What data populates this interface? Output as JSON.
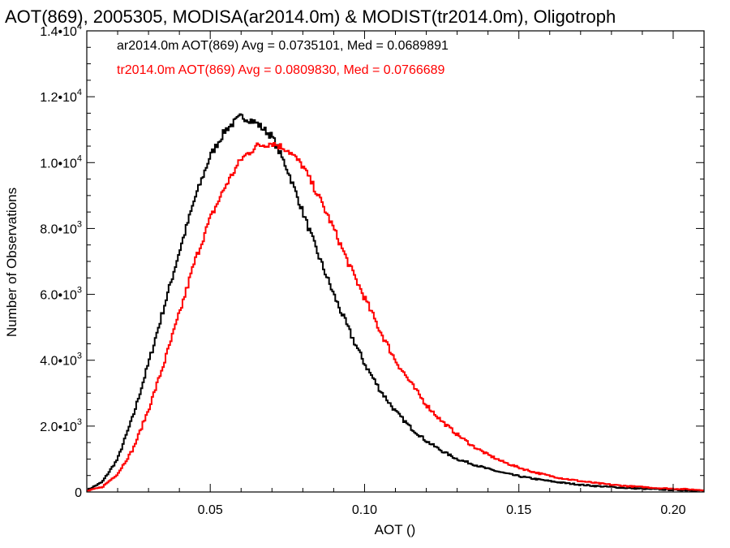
{
  "chart_data": {
    "type": "line",
    "title": "AOT(869), 2005305, MODISA(ar2014.0m) & MODIST(tr2014.0m), Oligotroph",
    "xlabel": "AOT ()",
    "ylabel": "Number of Observations",
    "xlim": [
      0.01,
      0.21
    ],
    "ylim": [
      0,
      14000
    ],
    "x_ticks": [
      {
        "value": 0.05,
        "label": "0.05"
      },
      {
        "value": 0.1,
        "label": "0.10"
      },
      {
        "value": 0.15,
        "label": "0.15"
      },
      {
        "value": 0.2,
        "label": "0.20"
      }
    ],
    "y_ticks": [
      {
        "value": 0,
        "label": "0"
      },
      {
        "value": 2000,
        "mantissa": "2.0•10",
        "exp": "3"
      },
      {
        "value": 4000,
        "mantissa": "4.0•10",
        "exp": "3"
      },
      {
        "value": 6000,
        "mantissa": "6.0•10",
        "exp": "3"
      },
      {
        "value": 8000,
        "mantissa": "8.0•10",
        "exp": "3"
      },
      {
        "value": 10000,
        "mantissa": "1.0•10",
        "exp": "4"
      },
      {
        "value": 12000,
        "mantissa": "1.2•10",
        "exp": "4"
      },
      {
        "value": 14000,
        "mantissa": "1.4•10",
        "exp": "4"
      }
    ],
    "grid": false,
    "legend_position": "top-left",
    "legend": [
      {
        "text": "ar2014.0m AOT(869) Avg = 0.0735101, Med = 0.0689891",
        "color": "#000000"
      },
      {
        "text": "tr2014.0m AOT(869) Avg = 0.0809830, Med = 0.0766689",
        "color": "#ff0000"
      }
    ],
    "series": [
      {
        "color": "#000000",
        "x": [
          0.01,
          0.015,
          0.02,
          0.025,
          0.03,
          0.035,
          0.04,
          0.045,
          0.05,
          0.055,
          0.06,
          0.063,
          0.065,
          0.07,
          0.075,
          0.08,
          0.085,
          0.09,
          0.095,
          0.1,
          0.105,
          0.11,
          0.115,
          0.12,
          0.125,
          0.13,
          0.135,
          0.14,
          0.145,
          0.15,
          0.155,
          0.16,
          0.165,
          0.17,
          0.175,
          0.18,
          0.185,
          0.19,
          0.195,
          0.2,
          0.205,
          0.21
        ],
        "y": [
          50,
          300,
          1000,
          2300,
          3900,
          5600,
          7300,
          8900,
          10200,
          11000,
          11400,
          11300,
          11200,
          10800,
          9800,
          8500,
          7200,
          6000,
          4900,
          3900,
          3100,
          2450,
          1950,
          1550,
          1250,
          1000,
          850,
          700,
          580,
          480,
          400,
          330,
          270,
          220,
          180,
          150,
          120,
          100,
          80,
          60,
          50,
          40
        ]
      },
      {
        "color": "#ff0000",
        "x": [
          0.01,
          0.015,
          0.02,
          0.025,
          0.03,
          0.035,
          0.04,
          0.045,
          0.05,
          0.055,
          0.06,
          0.065,
          0.07,
          0.075,
          0.08,
          0.085,
          0.09,
          0.095,
          0.1,
          0.105,
          0.11,
          0.115,
          0.12,
          0.125,
          0.13,
          0.135,
          0.14,
          0.145,
          0.15,
          0.155,
          0.16,
          0.165,
          0.17,
          0.175,
          0.18,
          0.185,
          0.19,
          0.195,
          0.2,
          0.205,
          0.21
        ],
        "y": [
          30,
          150,
          550,
          1300,
          2500,
          3900,
          5400,
          7000,
          8300,
          9300,
          10100,
          10500,
          10600,
          10400,
          9900,
          9000,
          8000,
          6900,
          5900,
          4900,
          4000,
          3300,
          2650,
          2150,
          1750,
          1400,
          1130,
          910,
          740,
          600,
          490,
          400,
          330,
          270,
          220,
          180,
          150,
          120,
          100,
          80,
          60
        ]
      }
    ]
  }
}
